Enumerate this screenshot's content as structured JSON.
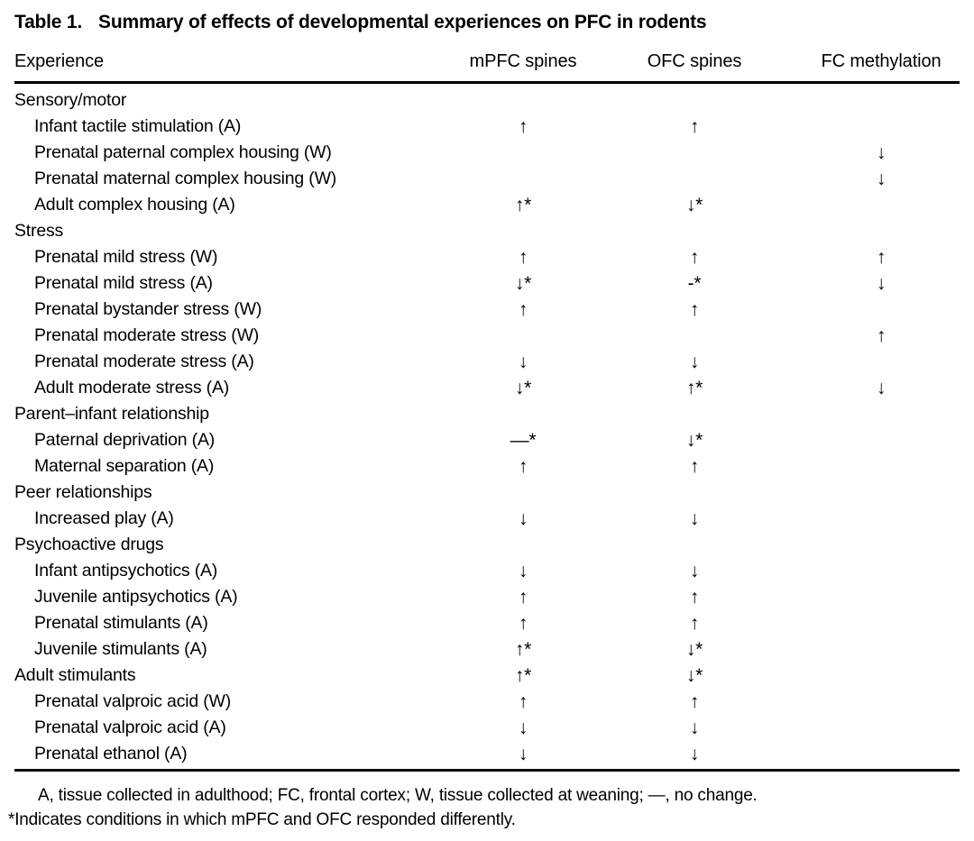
{
  "table": {
    "number": "Table 1.",
    "caption": "Summary of effects of developmental experiences on PFC in rodents",
    "columns": [
      "Experience",
      "mPFC spines",
      "OFC spines",
      "FC methylation"
    ],
    "rows": [
      {
        "label": "Sensory/motor",
        "indent": false,
        "mpfc": "",
        "ofc": "",
        "fc": ""
      },
      {
        "label": "Infant tactile stimulation (A)",
        "indent": true,
        "mpfc": "↑",
        "ofc": "↑",
        "fc": ""
      },
      {
        "label": "Prenatal paternal complex housing (W)",
        "indent": true,
        "mpfc": "",
        "ofc": "",
        "fc": "↓"
      },
      {
        "label": "Prenatal maternal complex housing (W)",
        "indent": true,
        "mpfc": "",
        "ofc": "",
        "fc": "↓"
      },
      {
        "label": "Adult complex housing (A)",
        "indent": true,
        "mpfc": "↑*",
        "ofc": "↓*",
        "fc": ""
      },
      {
        "label": "Stress",
        "indent": false,
        "mpfc": "",
        "ofc": "",
        "fc": ""
      },
      {
        "label": "Prenatal mild stress (W)",
        "indent": true,
        "mpfc": "↑",
        "ofc": "↑",
        "fc": "↑"
      },
      {
        "label": "Prenatal mild stress (A)",
        "indent": true,
        "mpfc": "↓*",
        "ofc": "-*",
        "fc": "↓"
      },
      {
        "label": "Prenatal bystander stress (W)",
        "indent": true,
        "mpfc": "↑",
        "ofc": "↑",
        "fc": ""
      },
      {
        "label": "Prenatal moderate stress (W)",
        "indent": true,
        "mpfc": "",
        "ofc": "",
        "fc": "↑"
      },
      {
        "label": "Prenatal moderate stress (A)",
        "indent": true,
        "mpfc": "↓",
        "ofc": "↓",
        "fc": ""
      },
      {
        "label": "Adult moderate stress (A)",
        "indent": true,
        "mpfc": "↓*",
        "ofc": "↑*",
        "fc": "↓"
      },
      {
        "label": "Parent–infant relationship",
        "indent": false,
        "mpfc": "",
        "ofc": "",
        "fc": ""
      },
      {
        "label": "Paternal deprivation (A)",
        "indent": true,
        "mpfc": "—*",
        "ofc": "↓*",
        "fc": ""
      },
      {
        "label": "Maternal separation (A)",
        "indent": true,
        "mpfc": "↑",
        "ofc": "↑",
        "fc": ""
      },
      {
        "label": "Peer relationships",
        "indent": false,
        "mpfc": "",
        "ofc": "",
        "fc": ""
      },
      {
        "label": "Increased play (A)",
        "indent": true,
        "mpfc": "↓",
        "ofc": "↓",
        "fc": ""
      },
      {
        "label": "Psychoactive drugs",
        "indent": false,
        "mpfc": "",
        "ofc": "",
        "fc": ""
      },
      {
        "label": "Infant antipsychotics (A)",
        "indent": true,
        "mpfc": "↓",
        "ofc": "↓",
        "fc": ""
      },
      {
        "label": "Juvenile antipsychotics (A)",
        "indent": true,
        "mpfc": "↑",
        "ofc": "↑",
        "fc": ""
      },
      {
        "label": "Prenatal stimulants (A)",
        "indent": true,
        "mpfc": "↑",
        "ofc": "↑",
        "fc": ""
      },
      {
        "label": "Juvenile stimulants (A)",
        "indent": true,
        "mpfc": "↑*",
        "ofc": "↓*",
        "fc": ""
      },
      {
        "label": "Adult stimulants",
        "indent": false,
        "mpfc": "↑*",
        "ofc": "↓*",
        "fc": ""
      },
      {
        "label": "Prenatal valproic acid (W)",
        "indent": true,
        "mpfc": "↑",
        "ofc": "↑",
        "fc": ""
      },
      {
        "label": "Prenatal valproic acid (A)",
        "indent": true,
        "mpfc": "↓",
        "ofc": "↓",
        "fc": ""
      },
      {
        "label": "Prenatal ethanol (A)",
        "indent": true,
        "mpfc": "↓",
        "ofc": "↓",
        "fc": ""
      }
    ],
    "footnotes": [
      "A, tissue collected in adulthood; FC, frontal cortex; W, tissue collected at weaning; —, no change.",
      "*Indicates conditions in which mPFC and OFC responded differently."
    ]
  }
}
